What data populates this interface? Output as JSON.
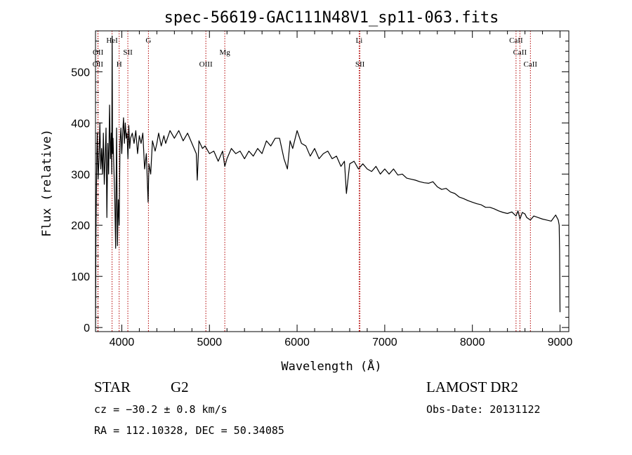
{
  "chart_data": {
    "type": "line",
    "title": "spec-56619-GAC111N48V1_sp11-063.fits",
    "xlabel": "Wavelength (Å)",
    "ylabel": "Flux (relative)",
    "xlim": [
      3700,
      9100
    ],
    "ylim": [
      -8,
      580
    ],
    "xticks": [
      4000,
      5000,
      6000,
      7000,
      8000,
      9000
    ],
    "yticks": [
      0,
      100,
      200,
      300,
      400,
      500
    ],
    "grid": false,
    "series": [
      {
        "points": [
          [
            3700,
            0
          ],
          [
            3705,
            180
          ],
          [
            3712,
            300
          ],
          [
            3720,
            380
          ],
          [
            3730,
            290
          ],
          [
            3740,
            330
          ],
          [
            3750,
            400
          ],
          [
            3760,
            310
          ],
          [
            3770,
            350
          ],
          [
            3780,
            300
          ],
          [
            3790,
            380
          ],
          [
            3800,
            280
          ],
          [
            3810,
            330
          ],
          [
            3820,
            390
          ],
          [
            3830,
            215
          ],
          [
            3840,
            360
          ],
          [
            3850,
            300
          ],
          [
            3860,
            435
          ],
          [
            3870,
            330
          ],
          [
            3880,
            380
          ],
          [
            3885,
            300
          ],
          [
            3890,
            570
          ],
          [
            3895,
            340
          ],
          [
            3900,
            370
          ],
          [
            3910,
            310
          ],
          [
            3920,
            250
          ],
          [
            3930,
            155
          ],
          [
            3940,
            390
          ],
          [
            3950,
            160
          ],
          [
            3960,
            250
          ],
          [
            3970,
            200
          ],
          [
            3980,
            360
          ],
          [
            3990,
            390
          ],
          [
            4000,
            340
          ],
          [
            4010,
            380
          ],
          [
            4020,
            410
          ],
          [
            4030,
            360
          ],
          [
            4040,
            400
          ],
          [
            4050,
            370
          ],
          [
            4060,
            380
          ],
          [
            4070,
            330
          ],
          [
            4080,
            395
          ],
          [
            4090,
            350
          ],
          [
            4100,
            370
          ],
          [
            4120,
            380
          ],
          [
            4140,
            360
          ],
          [
            4160,
            385
          ],
          [
            4180,
            340
          ],
          [
            4200,
            375
          ],
          [
            4220,
            360
          ],
          [
            4240,
            380
          ],
          [
            4260,
            310
          ],
          [
            4280,
            340
          ],
          [
            4300,
            245
          ],
          [
            4310,
            320
          ],
          [
            4330,
            300
          ],
          [
            4350,
            365
          ],
          [
            4380,
            345
          ],
          [
            4400,
            360
          ],
          [
            4420,
            380
          ],
          [
            4450,
            355
          ],
          [
            4480,
            375
          ],
          [
            4500,
            360
          ],
          [
            4550,
            385
          ],
          [
            4600,
            370
          ],
          [
            4650,
            385
          ],
          [
            4700,
            365
          ],
          [
            4750,
            380
          ],
          [
            4800,
            360
          ],
          [
            4850,
            340
          ],
          [
            4861,
            288
          ],
          [
            4880,
            365
          ],
          [
            4920,
            350
          ],
          [
            4950,
            355
          ],
          [
            5000,
            340
          ],
          [
            5050,
            345
          ],
          [
            5100,
            325
          ],
          [
            5150,
            345
          ],
          [
            5175,
            315
          ],
          [
            5200,
            330
          ],
          [
            5250,
            350
          ],
          [
            5300,
            340
          ],
          [
            5350,
            345
          ],
          [
            5400,
            330
          ],
          [
            5450,
            345
          ],
          [
            5500,
            335
          ],
          [
            5550,
            350
          ],
          [
            5600,
            340
          ],
          [
            5650,
            365
          ],
          [
            5700,
            355
          ],
          [
            5750,
            370
          ],
          [
            5800,
            370
          ],
          [
            5850,
            330
          ],
          [
            5890,
            310
          ],
          [
            5920,
            365
          ],
          [
            5950,
            350
          ],
          [
            6000,
            385
          ],
          [
            6050,
            360
          ],
          [
            6100,
            355
          ],
          [
            6150,
            335
          ],
          [
            6200,
            350
          ],
          [
            6250,
            330
          ],
          [
            6300,
            340
          ],
          [
            6350,
            345
          ],
          [
            6400,
            330
          ],
          [
            6450,
            335
          ],
          [
            6500,
            315
          ],
          [
            6540,
            325
          ],
          [
            6563,
            262
          ],
          [
            6600,
            320
          ],
          [
            6650,
            325
          ],
          [
            6700,
            310
          ],
          [
            6750,
            320
          ],
          [
            6800,
            310
          ],
          [
            6850,
            305
          ],
          [
            6900,
            315
          ],
          [
            6950,
            300
          ],
          [
            7000,
            310
          ],
          [
            7050,
            300
          ],
          [
            7100,
            310
          ],
          [
            7150,
            298
          ],
          [
            7200,
            300
          ],
          [
            7250,
            292
          ],
          [
            7300,
            290
          ],
          [
            7350,
            288
          ],
          [
            7400,
            285
          ],
          [
            7450,
            283
          ],
          [
            7500,
            282
          ],
          [
            7550,
            285
          ],
          [
            7600,
            275
          ],
          [
            7650,
            270
          ],
          [
            7700,
            272
          ],
          [
            7750,
            265
          ],
          [
            7800,
            262
          ],
          [
            7850,
            255
          ],
          [
            7900,
            252
          ],
          [
            7950,
            248
          ],
          [
            8000,
            245
          ],
          [
            8050,
            242
          ],
          [
            8100,
            240
          ],
          [
            8150,
            235
          ],
          [
            8200,
            235
          ],
          [
            8250,
            232
          ],
          [
            8300,
            228
          ],
          [
            8350,
            225
          ],
          [
            8400,
            223
          ],
          [
            8450,
            226
          ],
          [
            8498,
            218
          ],
          [
            8520,
            228
          ],
          [
            8542,
            212
          ],
          [
            8570,
            225
          ],
          [
            8600,
            222
          ],
          [
            8620,
            215
          ],
          [
            8662,
            210
          ],
          [
            8700,
            218
          ],
          [
            8750,
            215
          ],
          [
            8800,
            212
          ],
          [
            8850,
            210
          ],
          [
            8900,
            208
          ],
          [
            8950,
            220
          ],
          [
            8980,
            210
          ],
          [
            8990,
            200
          ],
          [
            8995,
            150
          ],
          [
            9000,
            30
          ]
        ]
      }
    ],
    "line_markers": [
      {
        "name": "OII",
        "wavelength": 3727,
        "tier": 3
      },
      {
        "name": "OII",
        "wavelength": 3729,
        "tier": 2
      },
      {
        "name": "HeI",
        "wavelength": 3889,
        "tier": 1
      },
      {
        "name": "H",
        "wavelength": 3970,
        "tier": 3
      },
      {
        "name": "SII",
        "wavelength": 4069,
        "tier": 2
      },
      {
        "name": "G",
        "wavelength": 4304,
        "tier": 1
      },
      {
        "name": "OIII",
        "wavelength": 4959,
        "tier": 3
      },
      {
        "name": "Mg",
        "wavelength": 5175,
        "tier": 2
      },
      {
        "name": "Li",
        "wavelength": 6708,
        "tier": 1
      },
      {
        "name": "SII",
        "wavelength": 6717,
        "tier": 3
      },
      {
        "name": "CaII",
        "wavelength": 8498,
        "tier": 1
      },
      {
        "name": "CaII",
        "wavelength": 8542,
        "tier": 2
      },
      {
        "name": "CaII",
        "wavelength": 8662,
        "tier": 3
      }
    ]
  },
  "info": {
    "object_type": "STAR",
    "subclass": "G2",
    "redshift": "cz = −30.2 ± 0.8 km/s",
    "coordinates": "RA = 112.10328, DEC =  50.34085",
    "survey": "LAMOST DR2",
    "obs_date": "Obs-Date: 20131122"
  },
  "colors": {
    "spectrum": "#000000",
    "line_markers": "#b30000",
    "axes": "#000000"
  }
}
